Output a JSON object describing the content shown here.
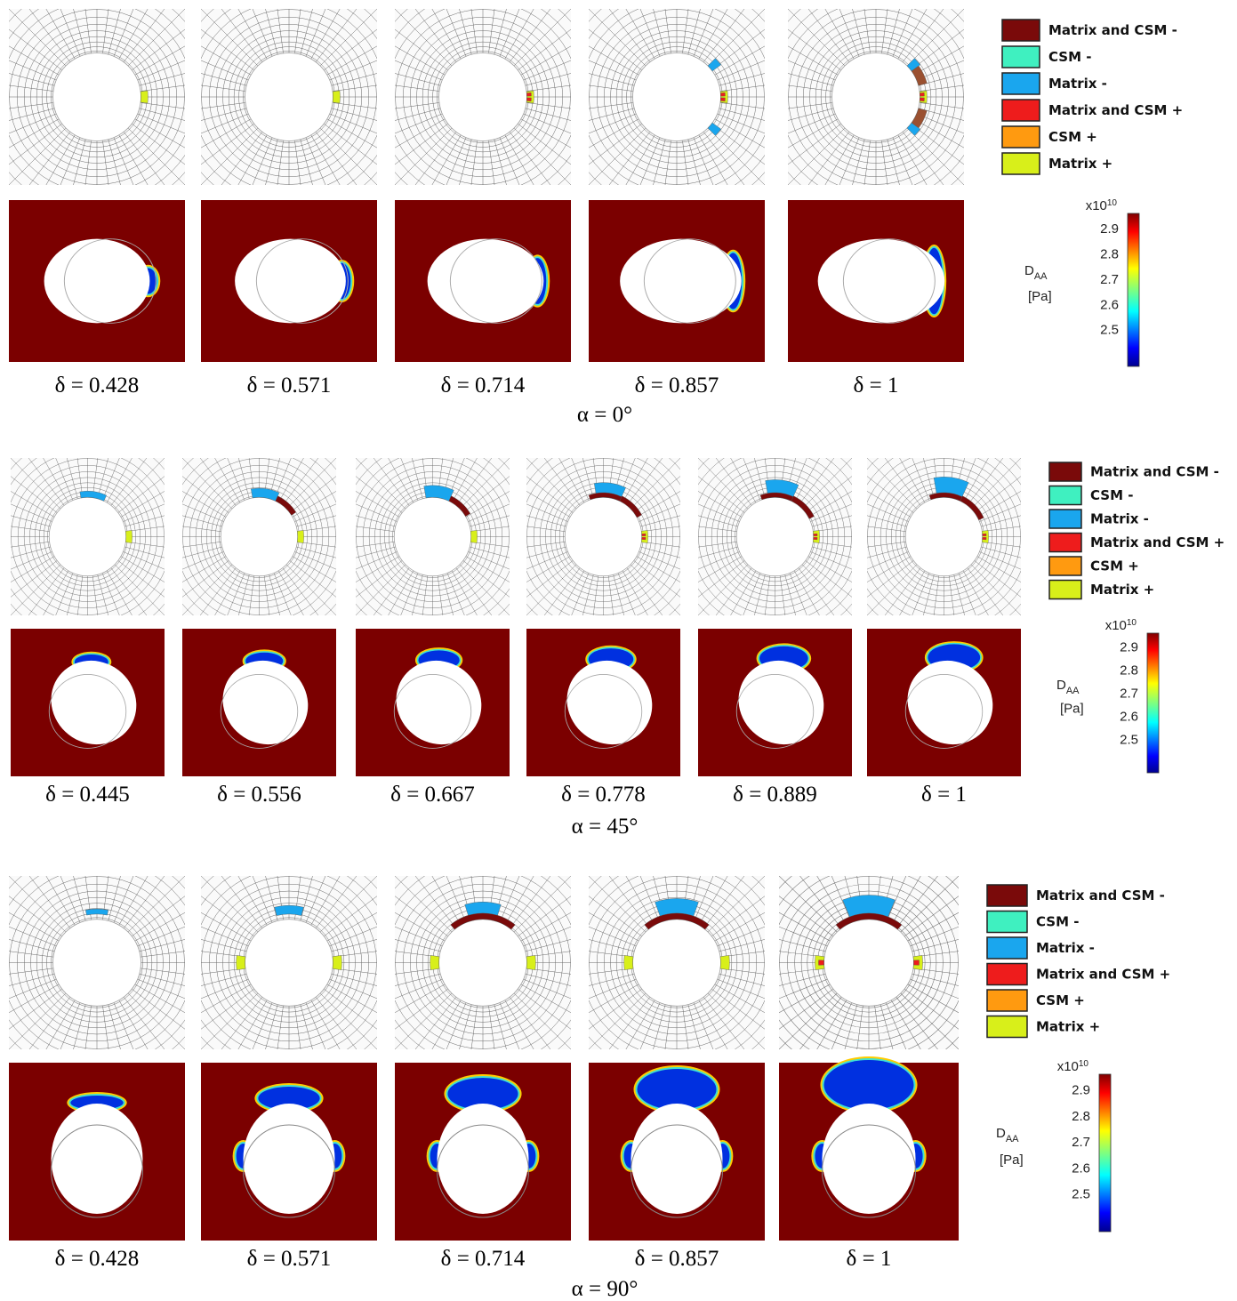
{
  "panels": [
    {
      "deltas": [
        "δ = 0.428",
        "δ = 0.571",
        "δ = 0.714",
        "δ = 0.857",
        "δ = 1"
      ],
      "alpha": "α = 0°",
      "legend": [
        {
          "label": "Matrix and CSM -",
          "color": "#7a0a0a"
        },
        {
          "label": "CSM -",
          "color": "#3ff0c0"
        },
        {
          "label": "Matrix -",
          "color": "#1aa6ee"
        },
        {
          "label": "Matrix and CSM +",
          "color": "#ee1c1c"
        },
        {
          "label": "CSM +",
          "color": "#ff9a10"
        },
        {
          "label": "Matrix +",
          "color": "#d8ef1a"
        }
      ],
      "colorbar": {
        "base": "x10",
        "power": "10",
        "quantity": "D",
        "subscript": "AA",
        "unit": "[Pa]",
        "ticks": [
          "2.9",
          "2.8",
          "2.7",
          "2.6",
          "2.5"
        ]
      }
    },
    {
      "deltas": [
        "δ = 0.445",
        "δ = 0.556",
        "δ = 0.667",
        "δ = 0.778",
        "δ = 0.889",
        "δ = 1"
      ],
      "alpha": "α = 45°",
      "legend": [
        {
          "label": "Matrix and CSM -",
          "color": "#7a0a0a"
        },
        {
          "label": "CSM -",
          "color": "#3ff0c0"
        },
        {
          "label": "Matrix -",
          "color": "#1aa6ee"
        },
        {
          "label": "Matrix and CSM +",
          "color": "#ee1c1c"
        },
        {
          "label": "CSM +",
          "color": "#ff9a10"
        },
        {
          "label": "Matrix +",
          "color": "#d8ef1a"
        }
      ],
      "colorbar": {
        "base": "x10",
        "power": "10",
        "quantity": "D",
        "subscript": "AA",
        "unit": "[Pa]",
        "ticks": [
          "2.9",
          "2.8",
          "2.7",
          "2.6",
          "2.5"
        ]
      }
    },
    {
      "deltas": [
        "δ = 0.428",
        "δ = 0.571",
        "δ = 0.714",
        "δ = 0.857",
        "δ = 1"
      ],
      "alpha": "α = 90°",
      "legend": [
        {
          "label": "Matrix and CSM -",
          "color": "#7a0a0a"
        },
        {
          "label": "CSM -",
          "color": "#3ff0c0"
        },
        {
          "label": "Matrix -",
          "color": "#1aa6ee"
        },
        {
          "label": "Matrix and CSM +",
          "color": "#ee1c1c"
        },
        {
          "label": "CSM +",
          "color": "#ff9a10"
        },
        {
          "label": "Matrix +",
          "color": "#d8ef1a"
        }
      ],
      "colorbar": {
        "base": "x10",
        "power": "10",
        "quantity": "D",
        "subscript": "AA",
        "unit": "[Pa]",
        "ticks": [
          "2.9",
          "2.8",
          "2.7",
          "2.6",
          "2.5"
        ]
      }
    }
  ]
}
